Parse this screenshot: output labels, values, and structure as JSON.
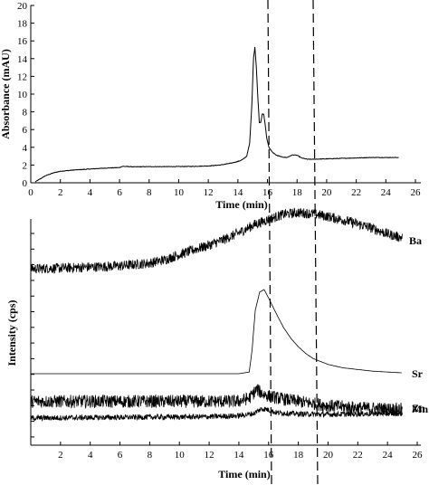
{
  "chart_data": [
    {
      "type": "line",
      "panel": "top",
      "xlabel": "Time (min)",
      "ylabel": "Absorbance (mAU)",
      "xlim": [
        0,
        26
      ],
      "ylim": [
        0,
        20
      ],
      "x_ticks": [
        "0",
        "2",
        "4",
        "6",
        "8",
        "10",
        "12",
        "14",
        "16",
        "18",
        "20",
        "22",
        "24",
        "26"
      ],
      "y_ticks": [
        "0",
        "2",
        "4",
        "6",
        "8",
        "10",
        "12",
        "14",
        "16",
        "18",
        "20"
      ],
      "series": [
        {
          "x": [
            0.3,
            0.6,
            1,
            1.5,
            2,
            3,
            4,
            5,
            6,
            6.2,
            7,
            8,
            9,
            10,
            11,
            12,
            12.8,
            13.5,
            14,
            14.3,
            14.6,
            14.8,
            14.95,
            15.05,
            15.15,
            15.25,
            15.35,
            15.45,
            15.55,
            15.65,
            15.75,
            15.85,
            15.95,
            16.1,
            16.3,
            16.6,
            17,
            17.3,
            17.7,
            18,
            18.3,
            18.7,
            19,
            20,
            21,
            22,
            23,
            24,
            24.9
          ],
          "y": [
            0.1,
            0.4,
            0.8,
            1.1,
            1.3,
            1.45,
            1.55,
            1.65,
            1.72,
            1.85,
            1.8,
            1.82,
            1.82,
            1.83,
            1.85,
            1.9,
            2.0,
            2.2,
            2.4,
            2.6,
            3.0,
            4.5,
            9.0,
            14.0,
            15.3,
            13.0,
            9.5,
            6.8,
            6.8,
            7.8,
            7.7,
            6.5,
            5.0,
            4.0,
            3.5,
            3.1,
            2.9,
            2.85,
            3.15,
            3.1,
            2.8,
            2.65,
            2.65,
            2.7,
            2.75,
            2.8,
            2.85,
            2.85,
            2.85
          ]
        }
      ]
    },
    {
      "type": "line",
      "panel": "bottom",
      "xlabel": "Time (min)",
      "ylabel": "Intensity (cps)",
      "xlim": [
        0,
        26
      ],
      "x_ticks": [
        "2",
        "4",
        "6",
        "8",
        "10",
        "12",
        "14",
        "16",
        "18",
        "20",
        "22",
        "24",
        "26"
      ],
      "y_units": "relative (0 = baseline, 1 = maximum)",
      "series": [
        {
          "name": "Ba",
          "x": [
            0,
            2,
            4,
            6,
            8,
            9,
            10,
            11,
            12,
            13,
            14,
            15,
            16,
            17,
            18,
            19,
            20,
            21,
            22,
            23,
            24,
            25
          ],
          "y": [
            0.0,
            0.01,
            0.03,
            0.05,
            0.1,
            0.16,
            0.25,
            0.34,
            0.42,
            0.52,
            0.64,
            0.78,
            0.88,
            0.97,
            1.0,
            0.98,
            0.93,
            0.87,
            0.8,
            0.72,
            0.62,
            0.55
          ],
          "noise": 0.09
        },
        {
          "name": "Sr",
          "x": [
            0,
            14,
            14.7,
            14.9,
            15.1,
            15.4,
            15.7,
            16,
            16.5,
            17,
            17.5,
            18,
            18.5,
            19,
            20,
            21,
            22,
            23,
            24,
            25
          ],
          "y": [
            0.0,
            0.0,
            0.02,
            0.3,
            0.75,
            0.97,
            1.0,
            0.9,
            0.72,
            0.55,
            0.42,
            0.32,
            0.24,
            0.18,
            0.11,
            0.07,
            0.05,
            0.03,
            0.02,
            0.01
          ],
          "noise": 0.0
        },
        {
          "name": "Mn",
          "x": [
            0,
            5,
            10,
            14,
            14.7,
            15.2,
            15.6,
            16,
            17,
            18,
            19,
            20,
            22,
            24,
            25
          ],
          "y": [
            0.35,
            0.35,
            0.35,
            0.35,
            0.5,
            0.9,
            0.7,
            0.6,
            0.45,
            0.35,
            0.25,
            0.15,
            0.05,
            0.0,
            0.0
          ],
          "noise": 0.3
        },
        {
          "name": "Zn",
          "x": [
            0,
            4,
            8,
            10,
            12,
            14,
            15,
            15.5,
            15.8,
            16.5,
            18,
            20,
            22,
            24,
            25
          ],
          "y": [
            0.0,
            0.05,
            0.1,
            0.12,
            0.15,
            0.25,
            0.5,
            1.0,
            1.0,
            0.6,
            0.45,
            0.4,
            0.45,
            0.5,
            0.5
          ],
          "noise": 0.3
        }
      ]
    }
  ]
}
